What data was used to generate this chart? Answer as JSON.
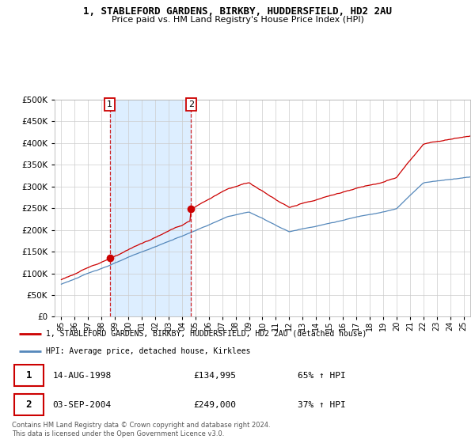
{
  "title": "1, STABLEFORD GARDENS, BIRKBY, HUDDERSFIELD, HD2 2AU",
  "subtitle": "Price paid vs. HM Land Registry's House Price Index (HPI)",
  "legend_label_red": "1, STABLEFORD GARDENS, BIRKBY, HUDDERSFIELD, HD2 2AU (detached house)",
  "legend_label_blue": "HPI: Average price, detached house, Kirklees",
  "transaction1_date": "14-AUG-1998",
  "transaction1_price": "£134,995",
  "transaction1_hpi": "65% ↑ HPI",
  "transaction2_date": "03-SEP-2004",
  "transaction2_price": "£249,000",
  "transaction2_hpi": "37% ↑ HPI",
  "footer": "Contains HM Land Registry data © Crown copyright and database right 2024.\nThis data is licensed under the Open Government Licence v3.0.",
  "red_color": "#cc0000",
  "blue_color": "#5588bb",
  "shade_color": "#ddeeff",
  "grid_color": "#cccccc",
  "marker1_x": 1998.62,
  "marker1_y": 134995,
  "marker2_x": 2004.67,
  "marker2_y": 249000,
  "ylim": [
    0,
    500000
  ],
  "xlim_start": 1994.5,
  "xlim_end": 2025.5
}
